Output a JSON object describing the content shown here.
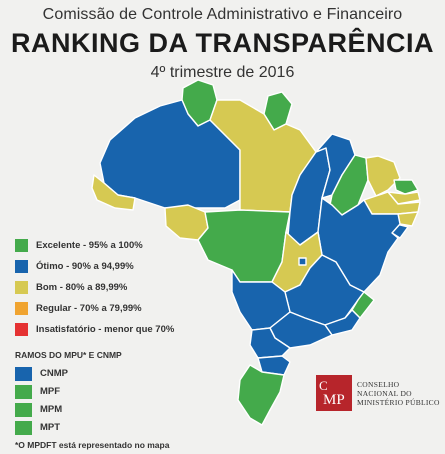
{
  "header": {
    "subtitle": "Comissão de Controle Administrativo e Financeiro",
    "title": "RANKING  DA TRANSPARÊNCIA",
    "period": "4º trimestre de 2016"
  },
  "colors": {
    "excelente": "#44aa4b",
    "otimo": "#1864ad",
    "bom": "#d6c952",
    "regular": "#f0a430",
    "insatisfatorio": "#e53232",
    "background": "#f1f1ef"
  },
  "legend": [
    {
      "label": "Excelente - 95% a 100%",
      "color": "#44aa4b"
    },
    {
      "label": "Ótimo - 90% a 94,99%",
      "color": "#1864ad"
    },
    {
      "label": "Bom - 80% a 89,99%",
      "color": "#d6c952"
    },
    {
      "label": "Regular - 70% a 79,99%",
      "color": "#f0a430"
    },
    {
      "label": "Insatisfatório - menor que 70%",
      "color": "#e53232"
    }
  ],
  "ramos": {
    "title": "RAMOS DO MPU* E CNMP",
    "items": [
      {
        "label": "CNMP",
        "color": "#1864ad"
      },
      {
        "label": "MPF",
        "color": "#44aa4b"
      },
      {
        "label": "MPM",
        "color": "#44aa4b"
      },
      {
        "label": "MPT",
        "color": "#44aa4b"
      }
    ]
  },
  "footnote": "*O MPDFT está representado no mapa",
  "logo": {
    "mark_c": "C",
    "mark_mp": "MP",
    "line1": "CONSELHO",
    "line2": "NACIONAL DO",
    "line3": "MINISTÉRIO PÚBLICO"
  },
  "map": {
    "states": [
      {
        "name": "RR",
        "rating": "excelente"
      },
      {
        "name": "AP",
        "rating": "excelente"
      },
      {
        "name": "AM",
        "rating": "otimo"
      },
      {
        "name": "PA",
        "rating": "bom"
      },
      {
        "name": "AC",
        "rating": "bom"
      },
      {
        "name": "RO",
        "rating": "bom"
      },
      {
        "name": "MT",
        "rating": "excelente"
      },
      {
        "name": "TO",
        "rating": "otimo"
      },
      {
        "name": "MA",
        "rating": "otimo"
      },
      {
        "name": "PI",
        "rating": "excelente"
      },
      {
        "name": "CE",
        "rating": "bom"
      },
      {
        "name": "RN",
        "rating": "excelente"
      },
      {
        "name": "PB",
        "rating": "bom"
      },
      {
        "name": "PE",
        "rating": "bom"
      },
      {
        "name": "AL",
        "rating": "bom"
      },
      {
        "name": "SE",
        "rating": "otimo"
      },
      {
        "name": "BA",
        "rating": "otimo"
      },
      {
        "name": "GO",
        "rating": "bom"
      },
      {
        "name": "DF",
        "rating": "otimo"
      },
      {
        "name": "MG",
        "rating": "otimo"
      },
      {
        "name": "ES",
        "rating": "excelente"
      },
      {
        "name": "RJ",
        "rating": "otimo"
      },
      {
        "name": "SP",
        "rating": "otimo"
      },
      {
        "name": "MS",
        "rating": "otimo"
      },
      {
        "name": "PR",
        "rating": "otimo"
      },
      {
        "name": "SC",
        "rating": "otimo"
      },
      {
        "name": "RS",
        "rating": "excelente"
      }
    ]
  }
}
